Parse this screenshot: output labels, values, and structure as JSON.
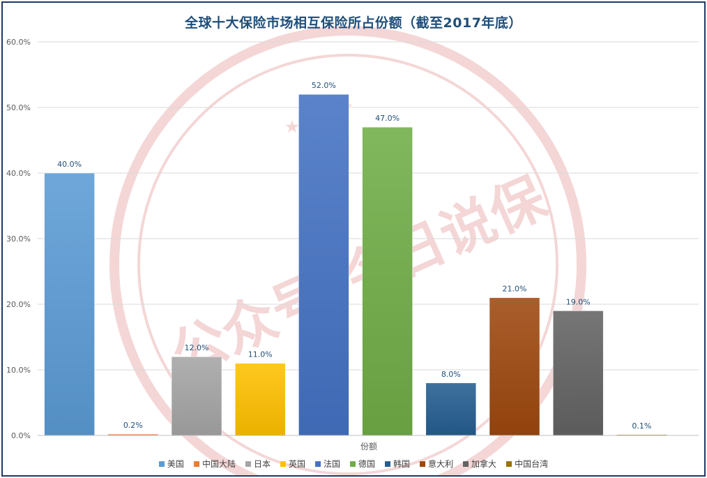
{
  "chart_data": {
    "type": "bar",
    "title": "全球十大保险市场相互保险所占份额（截至2017年底）",
    "xlabel": "份额",
    "ylabel": "",
    "ylim": [
      0,
      60
    ],
    "yticks": [
      "0.0%",
      "10.0%",
      "20.0%",
      "30.0%",
      "40.0%",
      "50.0%",
      "60.0%"
    ],
    "categories": [
      "美国",
      "中国大陆",
      "日本",
      "英国",
      "法国",
      "德国",
      "韩国",
      "意大利",
      "加拿大",
      "中国台湾"
    ],
    "values": [
      40.0,
      0.2,
      12.0,
      11.0,
      52.0,
      47.0,
      8.0,
      21.0,
      19.0,
      0.1
    ],
    "data_labels": [
      "40.0%",
      "0.2%",
      "12.0%",
      "11.0%",
      "52.0%",
      "47.0%",
      "8.0%",
      "21.0%",
      "19.0%",
      "0.1%"
    ],
    "colors": [
      "#5b9bd5",
      "#ed7d31",
      "#a5a5a5",
      "#ffc000",
      "#4472c4",
      "#70ad47",
      "#255e91",
      "#9e480e",
      "#636363",
      "#997300"
    ],
    "grid": true,
    "legend_position": "bottom"
  },
  "watermark": {
    "text": "公众号:今日说保",
    "color": "#e8a6a6"
  }
}
